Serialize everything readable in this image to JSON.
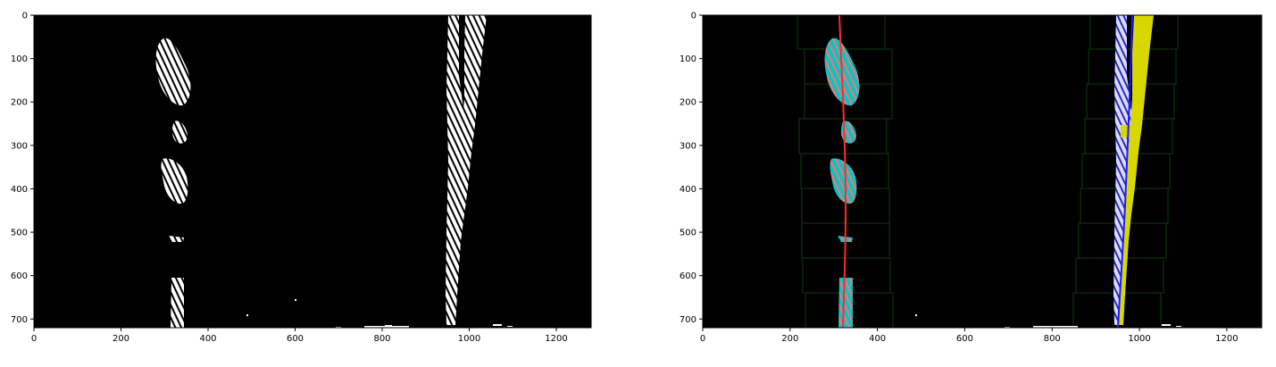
{
  "panels": [
    {
      "name": "binary-warped-panel",
      "x_ticks": [
        "0",
        "200",
        "400",
        "600",
        "800",
        "1000",
        "1200"
      ],
      "y_ticks": [
        "0",
        "100",
        "200",
        "300",
        "400",
        "500",
        "600",
        "700"
      ]
    },
    {
      "name": "sliding-window-fit-panel",
      "x_ticks": [
        "0",
        "200",
        "400",
        "600",
        "800",
        "1000",
        "1200"
      ],
      "y_ticks": [
        "0",
        "100",
        "200",
        "300",
        "400",
        "500",
        "600",
        "700"
      ]
    }
  ],
  "axes": {
    "x_range": [
      0,
      1280
    ],
    "y_range": [
      0,
      720
    ]
  },
  "colors": {
    "background": "#000000",
    "lane_pixels": "#ffffff",
    "left_lane_pixels": "#00c8c8",
    "right_lane_pixels": "#d8d800",
    "fit_line_left": "#ff2a2a",
    "fit_line_right": "#1a1aff",
    "search_windows": "#0e3a0e",
    "axis": "#000000"
  }
}
